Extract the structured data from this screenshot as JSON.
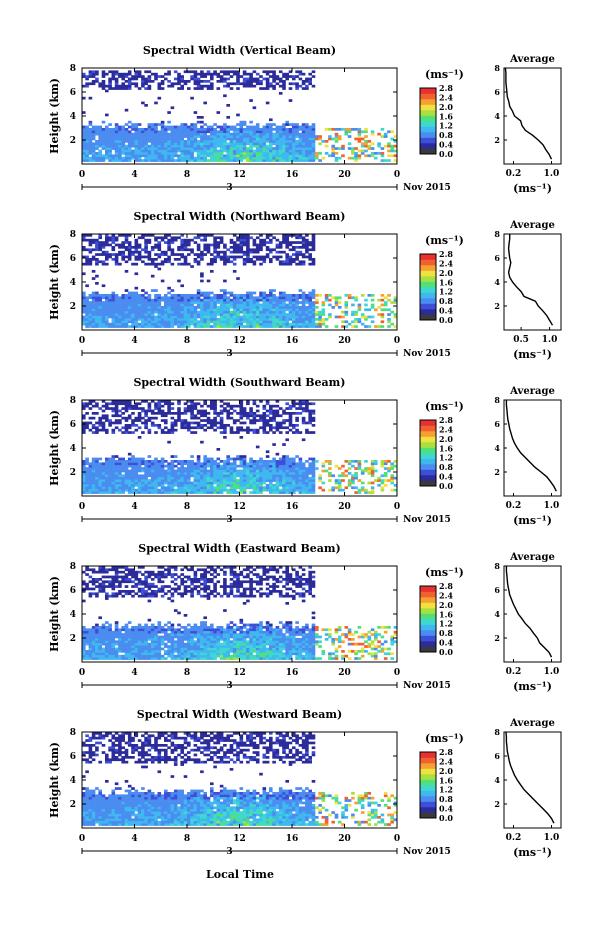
{
  "figure": {
    "xlabel": "Local Time",
    "date_label": "Nov 2015",
    "day_marker": "3",
    "units_label": "(ms⁻¹)"
  },
  "colorbar": {
    "colors": [
      "#3a3a3a",
      "#2b2b9a",
      "#3c4fd6",
      "#4a8cf0",
      "#3fb8f0",
      "#3fd8d0",
      "#4fe07a",
      "#a8e040",
      "#f0e040",
      "#f5a030",
      "#f06030",
      "#e83030"
    ]
  },
  "chart_data": [
    {
      "type": "heatmap",
      "title": "Spectral Width (Vertical Beam)",
      "ylabel": "Height (km)",
      "xlim": [
        0,
        24
      ],
      "ylim": [
        0,
        8
      ],
      "xticks": [
        "0",
        "4",
        "8",
        "12",
        "16",
        "20",
        "0"
      ],
      "yticks": [
        "2",
        "4",
        "6",
        "8"
      ],
      "colorbar_ticks": [
        "0.0",
        "0.4",
        "0.8",
        "1.2",
        "1.6",
        "2.0",
        "2.4",
        "2.8"
      ],
      "cbar_range": [
        0.0,
        2.8
      ],
      "features": {
        "upper_band": [
          6.2,
          7.8
        ],
        "low_band_top": 3.2,
        "upper_end": 17.6
      },
      "profile": {
        "title": "Average",
        "xlabel": "(ms⁻¹)",
        "xticks": [
          "0.2",
          "1.0"
        ],
        "yticks": [
          "2",
          "4",
          "6",
          "8"
        ],
        "xlim": [
          0,
          1.2
        ],
        "ylim": [
          0,
          8
        ],
        "heights": [
          0.4,
          0.8,
          1.2,
          1.6,
          2.0,
          2.4,
          2.8,
          3.2,
          3.6,
          4.0,
          4.4,
          4.8,
          5.2,
          5.6,
          6.0,
          6.4,
          6.8,
          7.2,
          7.6,
          8.0
        ],
        "values": [
          1.0,
          0.95,
          0.88,
          0.82,
          0.72,
          0.6,
          0.45,
          0.38,
          0.35,
          0.22,
          0.18,
          0.12,
          0.1,
          0.07,
          0.06,
          0.05,
          0.04,
          0.04,
          0.04,
          0.03
        ]
      }
    },
    {
      "type": "heatmap",
      "title": "Spectral Width (Northward Beam)",
      "ylabel": "Height (km)",
      "xlim": [
        0,
        24
      ],
      "ylim": [
        0,
        8
      ],
      "xticks": [
        "0",
        "4",
        "8",
        "12",
        "16",
        "20",
        "0"
      ],
      "yticks": [
        "2",
        "4",
        "6",
        "8"
      ],
      "colorbar_ticks": [
        "0.0",
        "0.4",
        "0.8",
        "1.2",
        "1.6",
        "2.0",
        "2.4",
        "2.8"
      ],
      "cbar_range": [
        0.0,
        2.8
      ],
      "features": {
        "upper_band": [
          5.4,
          7.9
        ],
        "low_band_top": 3.0,
        "upper_end": 17.6
      },
      "profile": {
        "title": "Average",
        "xlabel": "(ms⁻¹)",
        "xticks": [
          "0.5",
          "1.0"
        ],
        "yticks": [
          "2",
          "4",
          "6",
          "8"
        ],
        "xlim": [
          0.2,
          1.2
        ],
        "ylim": [
          0,
          8
        ],
        "heights": [
          0.4,
          0.8,
          1.2,
          1.6,
          2.0,
          2.4,
          2.8,
          3.2,
          3.6,
          4.0,
          4.4,
          4.8,
          5.2,
          5.6,
          6.0,
          6.4,
          6.8,
          7.2,
          7.6,
          8.0
        ],
        "values": [
          1.05,
          1.0,
          0.95,
          0.88,
          0.8,
          0.75,
          0.55,
          0.5,
          0.42,
          0.35,
          0.3,
          0.28,
          0.3,
          0.32,
          0.3,
          0.29,
          0.28,
          0.29,
          0.3,
          0.3
        ]
      }
    },
    {
      "type": "heatmap",
      "title": "Spectral Width (Southward Beam)",
      "ylabel": "Height (km)",
      "xlim": [
        0,
        24
      ],
      "ylim": [
        0,
        8
      ],
      "xticks": [
        "0",
        "4",
        "8",
        "12",
        "16",
        "20",
        "0"
      ],
      "yticks": [
        "2",
        "4",
        "6",
        "8"
      ],
      "colorbar_ticks": [
        "0.0",
        "0.4",
        "0.8",
        "1.2",
        "1.6",
        "2.0",
        "2.4",
        "2.8"
      ],
      "cbar_range": [
        0.0,
        2.8
      ],
      "features": {
        "upper_band": [
          5.2,
          8.0
        ],
        "low_band_top": 3.0,
        "upper_end": 17.6
      },
      "profile": {
        "title": "Average",
        "xlabel": "(ms⁻¹)",
        "xticks": [
          "0.2",
          "1.0"
        ],
        "yticks": [
          "2",
          "4",
          "6",
          "8"
        ],
        "xlim": [
          0,
          1.2
        ],
        "ylim": [
          0,
          8
        ],
        "heights": [
          0.4,
          0.8,
          1.2,
          1.6,
          2.0,
          2.4,
          2.8,
          3.2,
          3.6,
          4.0,
          4.4,
          4.8,
          5.2,
          5.6,
          6.0,
          6.4,
          6.8,
          7.2,
          7.6,
          8.0
        ],
        "values": [
          1.1,
          1.05,
          0.98,
          0.9,
          0.78,
          0.65,
          0.55,
          0.45,
          0.35,
          0.28,
          0.22,
          0.18,
          0.15,
          0.12,
          0.1,
          0.08,
          0.07,
          0.06,
          0.05,
          0.05
        ]
      }
    },
    {
      "type": "heatmap",
      "title": "Spectral Width (Eastward Beam)",
      "ylabel": "Height (km)",
      "xlim": [
        0,
        24
      ],
      "ylim": [
        0,
        8
      ],
      "xticks": [
        "0",
        "4",
        "8",
        "12",
        "16",
        "20",
        "0"
      ],
      "yticks": [
        "2",
        "4",
        "6",
        "8"
      ],
      "colorbar_ticks": [
        "0.0",
        "0.4",
        "0.8",
        "1.2",
        "1.6",
        "2.0",
        "2.4",
        "2.8"
      ],
      "cbar_range": [
        0.0,
        2.8
      ],
      "features": {
        "upper_band": [
          5.4,
          8.0
        ],
        "low_band_top": 3.0,
        "upper_end": 17.6
      },
      "profile": {
        "title": "Average",
        "xlabel": "(ms⁻¹)",
        "xticks": [
          "0.2",
          "1.0"
        ],
        "yticks": [
          "2",
          "4",
          "6",
          "8"
        ],
        "xlim": [
          0,
          1.2
        ],
        "ylim": [
          0,
          8
        ],
        "heights": [
          0.4,
          0.8,
          1.2,
          1.6,
          2.0,
          2.4,
          2.8,
          3.2,
          3.6,
          4.0,
          4.4,
          4.8,
          5.2,
          5.6,
          6.0,
          6.4,
          6.8,
          7.2,
          7.6,
          8.0
        ],
        "values": [
          1.0,
          0.95,
          0.85,
          0.75,
          0.7,
          0.62,
          0.55,
          0.45,
          0.38,
          0.3,
          0.25,
          0.2,
          0.16,
          0.12,
          0.1,
          0.08,
          0.07,
          0.06,
          0.05,
          0.05
        ]
      }
    },
    {
      "type": "heatmap",
      "title": "Spectral Width (Westward Beam)",
      "ylabel": "Height (km)",
      "xlim": [
        0,
        24
      ],
      "ylim": [
        0,
        8
      ],
      "xticks": [
        "0",
        "4",
        "8",
        "12",
        "16",
        "20",
        "0"
      ],
      "yticks": [
        "2",
        "4",
        "6",
        "8"
      ],
      "colorbar_ticks": [
        "0.0",
        "0.4",
        "0.8",
        "1.2",
        "1.6",
        "2.0",
        "2.4",
        "2.8"
      ],
      "cbar_range": [
        0.0,
        2.8
      ],
      "features": {
        "upper_band": [
          5.4,
          8.0
        ],
        "low_band_top": 3.0,
        "upper_end": 17.6
      },
      "profile": {
        "title": "Average",
        "xlabel": "(ms⁻¹)",
        "xticks": [
          "0.2",
          "1.0"
        ],
        "yticks": [
          "2",
          "4",
          "6",
          "8"
        ],
        "xlim": [
          0,
          1.2
        ],
        "ylim": [
          0,
          8
        ],
        "heights": [
          0.4,
          0.8,
          1.2,
          1.6,
          2.0,
          2.4,
          2.8,
          3.2,
          3.6,
          4.0,
          4.4,
          4.8,
          5.2,
          5.6,
          6.0,
          6.4,
          6.8,
          7.2,
          7.6,
          8.0
        ],
        "values": [
          1.05,
          1.0,
          0.92,
          0.82,
          0.72,
          0.62,
          0.52,
          0.42,
          0.35,
          0.28,
          0.22,
          0.18,
          0.14,
          0.11,
          0.09,
          0.07,
          0.06,
          0.05,
          0.05,
          0.04
        ]
      }
    }
  ]
}
